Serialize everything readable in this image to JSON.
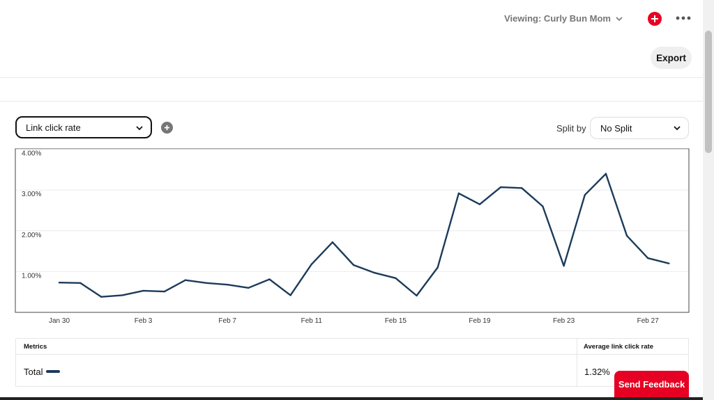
{
  "header": {
    "viewing_label": "Viewing: Curly Bun Mom",
    "create_icon": "plus-icon",
    "more_icon": "ellipsis-icon"
  },
  "toolbar": {
    "export_label": "Export"
  },
  "controls": {
    "metric": "Link click rate",
    "split_label": "Split by",
    "split_value": "No Split"
  },
  "chart_data": {
    "type": "line",
    "title": "",
    "xlabel": "",
    "ylabel": "",
    "ylim": [
      0,
      4
    ],
    "y_ticks": [
      "1.00%",
      "2.00%",
      "3.00%",
      "4.00%"
    ],
    "y_tick_values": [
      1,
      2,
      3,
      4
    ],
    "x": [
      "Jan 30",
      "Jan 31",
      "Feb 1",
      "Feb 2",
      "Feb 3",
      "Feb 4",
      "Feb 5",
      "Feb 6",
      "Feb 7",
      "Feb 8",
      "Feb 9",
      "Feb 10",
      "Feb 11",
      "Feb 12",
      "Feb 13",
      "Feb 14",
      "Feb 15",
      "Feb 16",
      "Feb 17",
      "Feb 18",
      "Feb 19",
      "Feb 20",
      "Feb 21",
      "Feb 22",
      "Feb 23",
      "Feb 24",
      "Feb 25",
      "Feb 26",
      "Feb 27",
      "Feb 28"
    ],
    "x_ticks": [
      "Jan 30",
      "Feb 3",
      "Feb 7",
      "Feb 11",
      "Feb 15",
      "Feb 19",
      "Feb 23",
      "Feb 27"
    ],
    "x_tick_index": [
      0,
      4,
      8,
      12,
      16,
      20,
      24,
      28
    ],
    "grid": true,
    "line_color": "#1c3b5a",
    "series": [
      {
        "values": [
          0.73,
          0.72,
          0.38,
          0.42,
          0.53,
          0.51,
          0.79,
          0.72,
          0.68,
          0.6,
          0.81,
          0.42,
          1.18,
          1.72,
          1.16,
          0.97,
          0.84,
          0.41,
          1.1,
          2.92,
          2.65,
          3.07,
          3.05,
          2.6,
          1.14,
          2.88,
          3.4,
          1.88,
          1.33,
          1.2
        ]
      }
    ]
  },
  "metrics_table": {
    "header_left": "Metrics",
    "header_right": "Average link click rate",
    "row_label": "Total",
    "row_value": "1.32%"
  },
  "feedback_label": "Send Feedback",
  "colors": {
    "brand_red": "#e60023",
    "line": "#1c3b5a"
  }
}
